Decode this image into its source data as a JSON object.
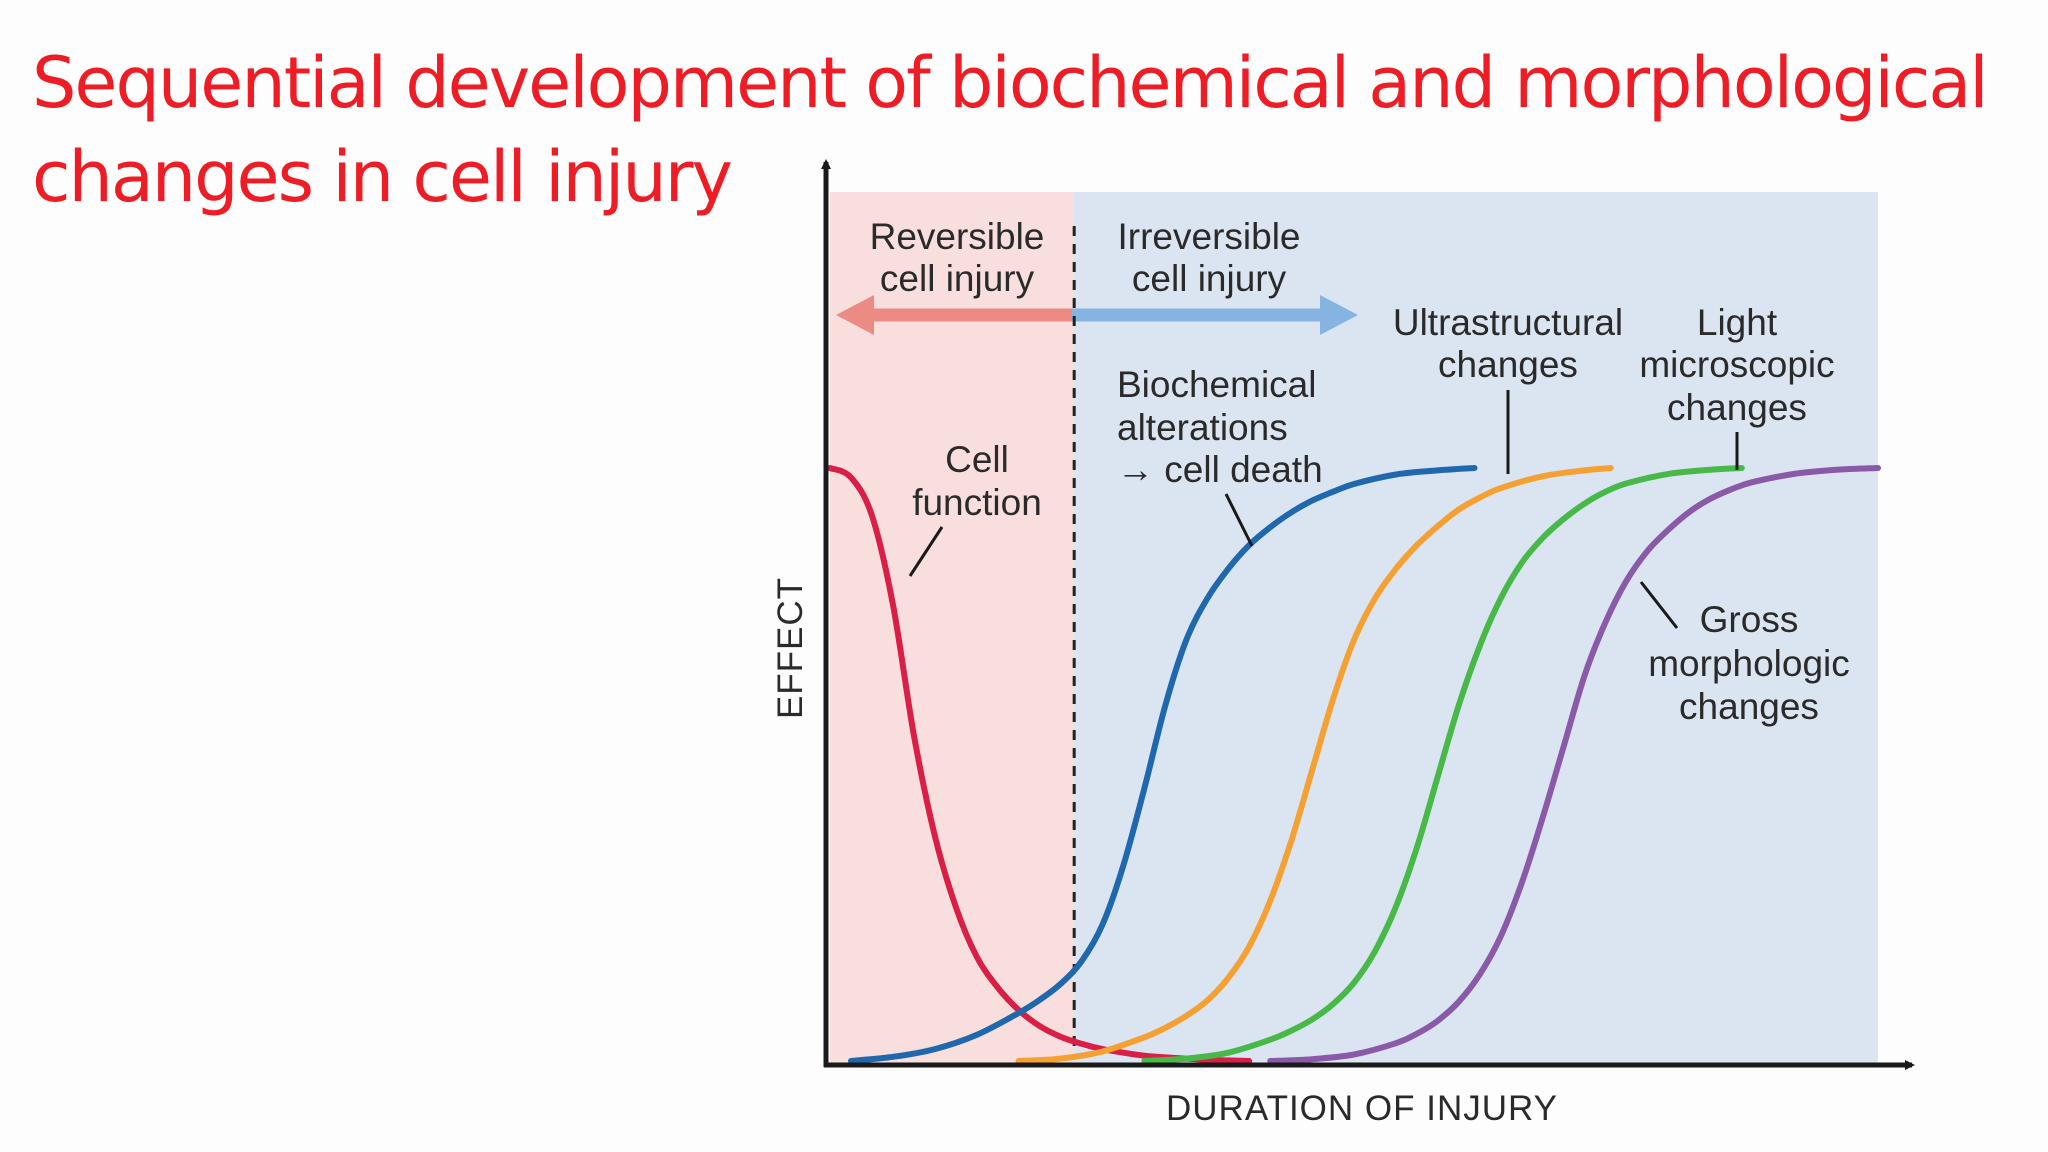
{
  "slide": {
    "title_lines": [
      "Sequential development of biochemical and morphological",
      "changes in cell injury"
    ],
    "title_color": "#ee1c25"
  },
  "chart_data": {
    "type": "line",
    "xlabel": "DURATION OF INJURY",
    "ylabel": "EFFECT",
    "xlim": [
      0,
      100
    ],
    "ylim": [
      0,
      100
    ],
    "grid": false,
    "ticks": "none",
    "regions": [
      {
        "name": "reversible",
        "label_lines": [
          "Reversible",
          "cell injury"
        ],
        "x_range": [
          0,
          23.3
        ],
        "color": "#f9dede"
      },
      {
        "name": "irreversible",
        "label_lines": [
          "Irreversible",
          "cell injury"
        ],
        "x_range": [
          23.3,
          100
        ],
        "color": "#dbe5f2"
      }
    ],
    "boundary_x": 23.3,
    "arrows": {
      "reversible_color": "#ec8a84",
      "irreversible_color": "#85b3e2"
    },
    "series": [
      {
        "key": "cell_function",
        "label_lines": [
          "Cell",
          "function"
        ],
        "color": "#d91f45",
        "x": [
          0,
          2,
          4,
          6,
          8,
          10,
          12,
          14,
          16,
          18,
          20,
          22,
          24,
          26,
          28,
          30,
          32,
          34,
          36,
          38,
          40
        ],
        "y": [
          100,
          98.4,
          92,
          77,
          55,
          38,
          26,
          17.6,
          12.4,
          8.6,
          5.9,
          4.1,
          2.9,
          2.0,
          1.4,
          0.9,
          0.6,
          0.4,
          0.2,
          0.1,
          0
        ]
      },
      {
        "key": "biochemical",
        "label_lines": [
          "Biochemical",
          "alterations",
          "→ cell death"
        ],
        "color": "#1f68ad",
        "x": [
          2,
          6,
          10,
          14,
          18,
          20,
          22,
          24,
          26,
          28,
          30,
          32,
          34,
          36,
          38,
          40,
          42,
          44,
          46,
          48,
          50,
          54,
          58,
          61.5
        ],
        "y": [
          0,
          0.7,
          2.0,
          4.4,
          8.1,
          10.3,
          13,
          16.8,
          23,
          33,
          46,
          60,
          71,
          78,
          83,
          87,
          90,
          92.5,
          94.5,
          96,
          97.3,
          98.9,
          99.6,
          100
        ]
      },
      {
        "key": "ultrastructural",
        "label_lines": [
          "Ultrastructural",
          "changes"
        ],
        "color": "#f5a033",
        "x": [
          18,
          22,
          26,
          30,
          32,
          34,
          36,
          38,
          40,
          42,
          44,
          46,
          48,
          50,
          52,
          54,
          56,
          58,
          60,
          62,
          64,
          68,
          72,
          74.5
        ],
        "y": [
          0,
          0.4,
          1.6,
          4.0,
          5.6,
          7.6,
          10.2,
          14,
          19.3,
          27,
          37,
          49,
          61,
          71,
          78,
          83,
          87,
          90.2,
          93,
          95,
          96.6,
          98.6,
          99.6,
          100
        ]
      },
      {
        "key": "light_microscopic",
        "label_lines": [
          "Light",
          "microscopic",
          "changes"
        ],
        "color": "#48b949",
        "x": [
          30,
          34,
          38,
          42,
          44,
          46,
          48,
          50,
          52,
          54,
          56,
          58,
          60,
          62,
          64,
          66,
          68,
          70,
          72,
          74,
          76,
          80,
          84,
          87
        ],
        "y": [
          0,
          0.4,
          1.4,
          3.6,
          5.1,
          7.0,
          9.6,
          13.2,
          18.5,
          26,
          36,
          48,
          60,
          70,
          78,
          84,
          88.2,
          91.4,
          94,
          96,
          97.4,
          99,
          99.7,
          100
        ]
      },
      {
        "key": "gross_morphologic",
        "label_lines": [
          "Gross",
          "morphologic",
          "changes"
        ],
        "color": "#8a5aa9",
        "x": [
          42,
          46,
          50,
          54,
          56,
          58,
          60,
          62,
          64,
          66,
          68,
          70,
          72,
          74,
          76,
          78,
          80,
          82,
          84,
          86,
          88,
          92,
          96,
          100
        ],
        "y": [
          0,
          0.3,
          1.1,
          3.0,
          4.6,
          6.8,
          10,
          14.6,
          21,
          30,
          41,
          53,
          65,
          74,
          81,
          86,
          89.6,
          92.6,
          94.8,
          96.4,
          97.6,
          99,
          99.7,
          100
        ]
      }
    ]
  }
}
